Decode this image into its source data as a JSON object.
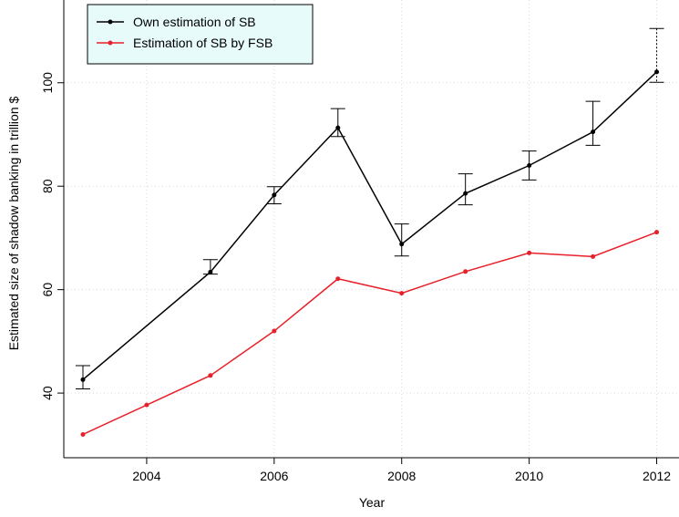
{
  "chart_data": {
    "type": "line",
    "xlabel": "Year",
    "ylabel": "Estimated size of shadow banking in trillion $",
    "xlim": [
      2002.7,
      2012.35
    ],
    "ylim": [
      27.5,
      116
    ],
    "x_ticks": [
      2004,
      2006,
      2008,
      2010,
      2012
    ],
    "y_ticks": [
      40,
      60,
      80,
      100
    ],
    "grid": true,
    "legend_position": "top-left",
    "series": [
      {
        "name": "Own estimation of SB",
        "color": "#000000",
        "x": [
          2003,
          2005,
          2006,
          2007,
          2008,
          2009,
          2010,
          2011,
          2012
        ],
        "values": [
          42.6,
          63.4,
          78.3,
          91.3,
          68.8,
          78.6,
          84.0,
          90.5,
          102.1
        ],
        "error_low": [
          40.8,
          63.0,
          76.6,
          89.6,
          66.5,
          76.4,
          81.2,
          87.9,
          100.1
        ],
        "error_high": [
          45.3,
          65.8,
          79.9,
          95.0,
          72.7,
          82.4,
          86.8,
          96.4,
          110.5
        ]
      },
      {
        "name": "Estimation of SB by FSB",
        "color": "#e8202a",
        "x": [
          2003,
          2004,
          2005,
          2006,
          2007,
          2008,
          2009,
          2010,
          2011,
          2012
        ],
        "values": [
          32.0,
          37.7,
          43.4,
          52.0,
          62.1,
          59.3,
          63.5,
          67.1,
          66.4,
          71.1
        ]
      }
    ],
    "legend": {
      "background": "#e7fbfb"
    }
  }
}
